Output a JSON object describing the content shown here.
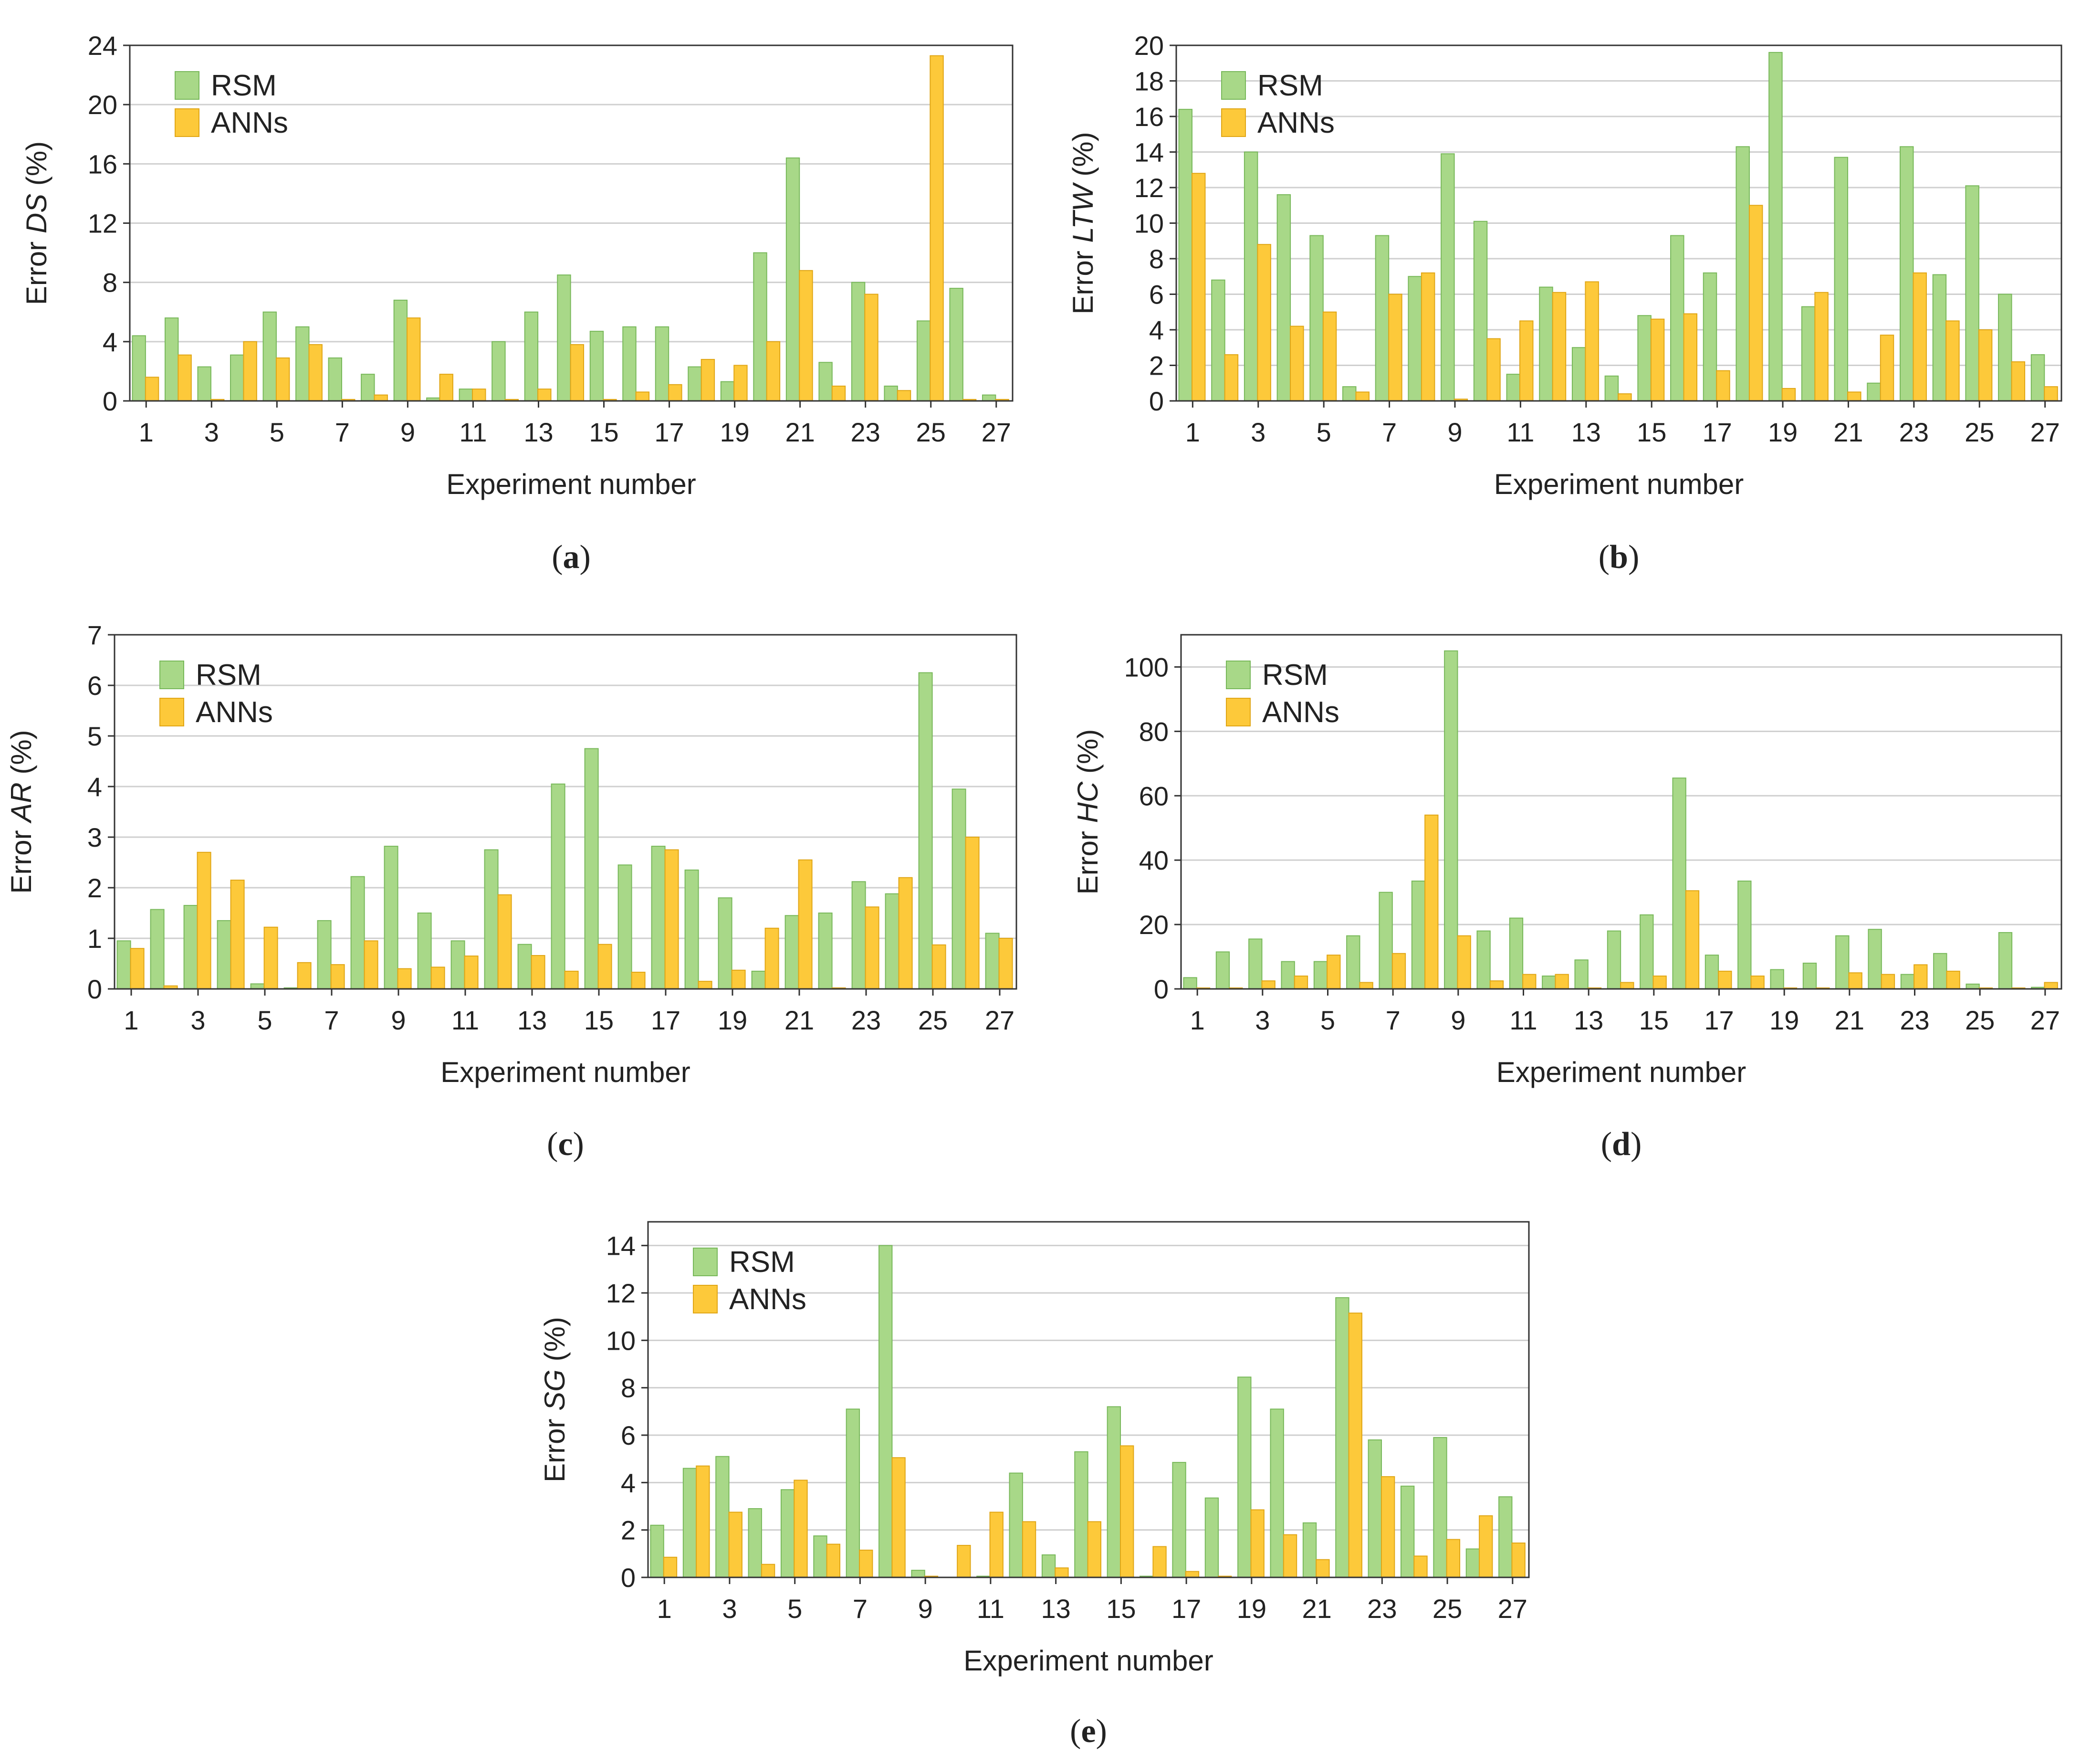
{
  "colors": {
    "rsm_fill": "#a8d888",
    "rsm_stroke": "#78b85a",
    "anns_fill": "#fdc93a",
    "anns_stroke": "#e0a616",
    "grid": "#cfcfcf",
    "axis": "#333333"
  },
  "chart_data": [
    {
      "type": "bar",
      "panel_label": "a",
      "ylabel_prefix": "Error ",
      "ylabel_var": "DS",
      "ylabel_suffix": " (%)",
      "xlabel": "Experiment number",
      "ylim": [
        0,
        24
      ],
      "yticks": [
        0,
        4,
        8,
        12,
        16,
        20,
        24
      ],
      "categories": [
        1,
        2,
        3,
        4,
        5,
        6,
        7,
        8,
        9,
        10,
        11,
        12,
        13,
        14,
        15,
        16,
        17,
        18,
        19,
        20,
        21,
        22,
        23,
        24,
        25,
        26,
        27
      ],
      "xtick_labels": [
        "1",
        "3",
        "5",
        "7",
        "9",
        "11",
        "13",
        "15",
        "17",
        "19",
        "21",
        "23",
        "25",
        "27"
      ],
      "legend": [
        "RSM",
        "ANNs"
      ],
      "series": [
        {
          "name": "RSM",
          "values": [
            4.4,
            5.6,
            2.3,
            3.1,
            6.0,
            5.0,
            2.9,
            1.8,
            6.8,
            0.2,
            0.8,
            4.0,
            6.0,
            8.5,
            4.7,
            5.0,
            5.0,
            2.3,
            1.3,
            10.0,
            16.4,
            2.6,
            8.0,
            1.0,
            5.4,
            7.6,
            0.4
          ]
        },
        {
          "name": "ANNs",
          "values": [
            1.6,
            3.1,
            0.1,
            4.0,
            2.9,
            3.8,
            0.1,
            0.4,
            5.6,
            1.8,
            0.8,
            0.1,
            0.8,
            3.8,
            0.1,
            0.6,
            1.1,
            2.8,
            2.4,
            4.0,
            8.8,
            1.0,
            7.2,
            0.7,
            23.3,
            0.1,
            0.1
          ]
        }
      ]
    },
    {
      "type": "bar",
      "panel_label": "b",
      "ylabel_prefix": "Error ",
      "ylabel_var": "LTW",
      "ylabel_suffix": " (%)",
      "xlabel": "Experiment number",
      "ylim": [
        0,
        20
      ],
      "yticks": [
        0,
        2,
        4,
        6,
        8,
        10,
        12,
        14,
        16,
        18,
        20
      ],
      "categories": [
        1,
        2,
        3,
        4,
        5,
        6,
        7,
        8,
        9,
        10,
        11,
        12,
        13,
        14,
        15,
        16,
        17,
        18,
        19,
        20,
        21,
        22,
        23,
        24,
        25,
        26,
        27
      ],
      "xtick_labels": [
        "1",
        "3",
        "5",
        "7",
        "9",
        "11",
        "13",
        "15",
        "17",
        "19",
        "21",
        "23",
        "25",
        "27"
      ],
      "legend": [
        "RSM",
        "ANNs"
      ],
      "series": [
        {
          "name": "RSM",
          "values": [
            16.4,
            6.8,
            14.0,
            11.6,
            9.3,
            0.8,
            9.3,
            7.0,
            13.9,
            10.1,
            1.5,
            6.4,
            3.0,
            1.4,
            4.8,
            9.3,
            7.2,
            14.3,
            19.6,
            5.3,
            13.7,
            1.0,
            14.3,
            7.1,
            12.1,
            6.0,
            2.6
          ]
        },
        {
          "name": "ANNs",
          "values": [
            12.8,
            2.6,
            8.8,
            4.2,
            5.0,
            0.5,
            6.0,
            7.2,
            0.1,
            3.5,
            4.5,
            6.1,
            6.7,
            0.4,
            4.6,
            4.9,
            1.7,
            11.0,
            0.7,
            6.1,
            0.5,
            3.7,
            7.2,
            4.5,
            4.0,
            2.2,
            0.8
          ]
        }
      ]
    },
    {
      "type": "bar",
      "panel_label": "c",
      "ylabel_prefix": "Error ",
      "ylabel_var": "AR",
      "ylabel_suffix": " (%)",
      "xlabel": "Experiment number",
      "ylim": [
        0,
        7
      ],
      "yticks": [
        0,
        1,
        2,
        3,
        4,
        5,
        6,
        7
      ],
      "categories": [
        1,
        2,
        3,
        4,
        5,
        6,
        7,
        8,
        9,
        10,
        11,
        12,
        13,
        14,
        15,
        16,
        17,
        18,
        19,
        20,
        21,
        22,
        23,
        24,
        25,
        26,
        27
      ],
      "xtick_labels": [
        "1",
        "3",
        "5",
        "7",
        "9",
        "11",
        "13",
        "15",
        "17",
        "19",
        "21",
        "23",
        "25",
        "27"
      ],
      "legend": [
        "RSM",
        "ANNs"
      ],
      "series": [
        {
          "name": "RSM",
          "values": [
            0.95,
            1.57,
            1.65,
            1.35,
            0.1,
            0.02,
            1.35,
            2.22,
            2.82,
            1.5,
            0.95,
            2.75,
            0.88,
            4.05,
            4.75,
            2.45,
            2.82,
            2.35,
            1.8,
            0.35,
            1.45,
            1.5,
            2.12,
            1.88,
            6.25,
            3.95,
            1.1
          ]
        },
        {
          "name": "ANNs",
          "values": [
            0.8,
            0.06,
            2.7,
            2.15,
            1.22,
            0.52,
            0.48,
            0.95,
            0.4,
            0.43,
            0.65,
            1.86,
            0.66,
            0.35,
            0.88,
            0.33,
            2.75,
            0.15,
            0.37,
            1.2,
            2.55,
            0.02,
            1.62,
            2.2,
            0.87,
            3.0,
            1.0
          ]
        }
      ]
    },
    {
      "type": "bar",
      "panel_label": "d",
      "ylabel_prefix": "Error ",
      "ylabel_var": "HC",
      "ylabel_suffix": " (%)",
      "xlabel": "Experiment number",
      "ylim": [
        0,
        110
      ],
      "yticks": [
        0,
        20,
        40,
        60,
        80,
        100
      ],
      "categories": [
        1,
        2,
        3,
        4,
        5,
        6,
        7,
        8,
        9,
        10,
        11,
        12,
        13,
        14,
        15,
        16,
        17,
        18,
        19,
        20,
        21,
        22,
        23,
        24,
        25,
        26,
        27
      ],
      "xtick_labels": [
        "1",
        "3",
        "5",
        "7",
        "9",
        "11",
        "13",
        "15",
        "17",
        "19",
        "21",
        "23",
        "25",
        "27"
      ],
      "legend": [
        "RSM",
        "ANNs"
      ],
      "series": [
        {
          "name": "RSM",
          "values": [
            3.5,
            11.5,
            15.5,
            8.5,
            8.5,
            16.5,
            30.0,
            33.5,
            105.0,
            18.0,
            22.0,
            4.0,
            9.0,
            18.0,
            23.0,
            65.5,
            10.5,
            33.5,
            6.0,
            8.0,
            16.5,
            18.5,
            4.5,
            11.0,
            1.5,
            17.5,
            0.5
          ]
        },
        {
          "name": "ANNs",
          "values": [
            0.3,
            0.3,
            2.5,
            4.0,
            10.5,
            2.0,
            11.0,
            54.0,
            16.5,
            2.5,
            4.5,
            4.5,
            0.3,
            2.0,
            4.0,
            30.5,
            5.5,
            4.0,
            0.3,
            0.3,
            5.0,
            4.5,
            7.5,
            5.5,
            0.3,
            0.3,
            2.0
          ]
        }
      ]
    },
    {
      "type": "bar",
      "panel_label": "e",
      "ylabel_prefix": "Error ",
      "ylabel_var": "SG",
      "ylabel_suffix": " (%)",
      "xlabel": "Experiment number",
      "ylim": [
        0,
        15
      ],
      "yticks": [
        0,
        2,
        4,
        6,
        8,
        10,
        12,
        14
      ],
      "categories": [
        1,
        2,
        3,
        4,
        5,
        6,
        7,
        8,
        9,
        10,
        11,
        12,
        13,
        14,
        15,
        16,
        17,
        18,
        19,
        20,
        21,
        22,
        23,
        24,
        25,
        26,
        27
      ],
      "xtick_labels": [
        "1",
        "3",
        "5",
        "7",
        "9",
        "11",
        "13",
        "15",
        "17",
        "19",
        "21",
        "23",
        "25",
        "27"
      ],
      "legend": [
        "RSM",
        "ANNs"
      ],
      "series": [
        {
          "name": "RSM",
          "values": [
            2.2,
            4.6,
            5.1,
            2.9,
            3.7,
            1.75,
            7.1,
            14.0,
            0.3,
            0.0,
            0.05,
            4.4,
            0.95,
            5.3,
            7.2,
            0.05,
            4.85,
            3.35,
            8.45,
            7.1,
            2.3,
            11.8,
            5.8,
            3.85,
            5.9,
            1.2,
            3.4
          ]
        },
        {
          "name": "ANNs",
          "values": [
            0.85,
            4.7,
            2.75,
            0.55,
            4.1,
            1.4,
            1.15,
            5.05,
            0.05,
            1.35,
            2.75,
            2.35,
            0.4,
            2.35,
            5.55,
            1.3,
            0.25,
            0.05,
            2.85,
            1.8,
            0.75,
            11.15,
            4.25,
            0.9,
            1.6,
            2.6,
            1.45
          ]
        }
      ]
    }
  ]
}
